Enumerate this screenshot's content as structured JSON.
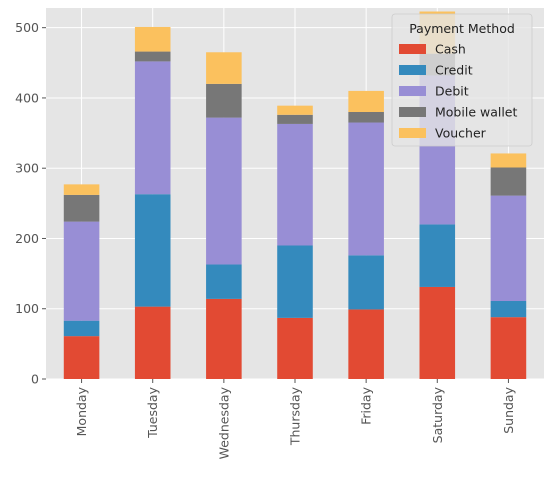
{
  "chart_data": {
    "type": "bar",
    "stacked": true,
    "title": "",
    "xlabel": "",
    "ylabel": "",
    "categories": [
      "Monday",
      "Tuesday",
      "Wednesday",
      "Thursday",
      "Friday",
      "Saturday",
      "Sunday"
    ],
    "series": [
      {
        "name": "Cash",
        "values": [
          61,
          103,
          114,
          87,
          99,
          131,
          88
        ]
      },
      {
        "name": "Credit",
        "values": [
          22,
          160,
          49,
          103,
          77,
          89,
          23
        ]
      },
      {
        "name": "Debit",
        "values": [
          141,
          189,
          209,
          173,
          189,
          212,
          150
        ]
      },
      {
        "name": "Mobile wallet",
        "values": [
          38,
          14,
          48,
          13,
          15,
          31,
          40
        ]
      },
      {
        "name": "Voucher",
        "values": [
          15,
          35,
          45,
          13,
          30,
          60,
          20
        ]
      }
    ],
    "colors": [
      "#E24A33",
      "#348ABD",
      "#988ED5",
      "#777777",
      "#FBC15E"
    ],
    "ylim": [
      0,
      528
    ],
    "yticks": [
      0,
      100,
      200,
      300,
      400,
      500
    ],
    "grid": true,
    "legend": {
      "title": "Payment Method",
      "position": "top-right"
    }
  }
}
